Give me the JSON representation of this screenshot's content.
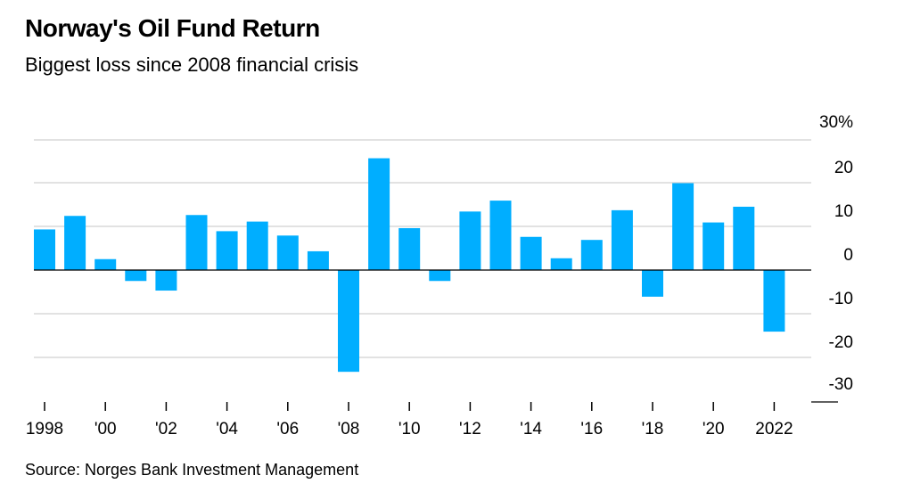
{
  "chart_data": {
    "type": "bar",
    "title": "Norway's Oil Fund Return",
    "subtitle": "Biggest loss since 2008 financial crisis",
    "source": "Source: Norges Bank Investment Management",
    "xlabel": "",
    "ylabel": "",
    "ylim": [
      -30,
      30
    ],
    "y_ticks": [
      {
        "value": 30,
        "label": "30%"
      },
      {
        "value": 20,
        "label": "20"
      },
      {
        "value": 10,
        "label": "10"
      },
      {
        "value": 0,
        "label": "0"
      },
      {
        "value": -10,
        "label": "-10"
      },
      {
        "value": -20,
        "label": "-20"
      },
      {
        "value": -30,
        "label": "-30"
      }
    ],
    "x_tick_labels": [
      {
        "year": 1998,
        "label": "1998"
      },
      {
        "year": 2000,
        "label": "'00"
      },
      {
        "year": 2002,
        "label": "'02"
      },
      {
        "year": 2004,
        "label": "'04"
      },
      {
        "year": 2006,
        "label": "'06"
      },
      {
        "year": 2008,
        "label": "'08"
      },
      {
        "year": 2010,
        "label": "'10"
      },
      {
        "year": 2012,
        "label": "'12"
      },
      {
        "year": 2014,
        "label": "'14"
      },
      {
        "year": 2016,
        "label": "'16"
      },
      {
        "year": 2018,
        "label": "'18"
      },
      {
        "year": 2020,
        "label": "'20"
      },
      {
        "year": 2022,
        "label": "2022"
      }
    ],
    "categories": [
      1998,
      1999,
      2000,
      2001,
      2002,
      2003,
      2004,
      2005,
      2006,
      2007,
      2008,
      2009,
      2010,
      2011,
      2012,
      2013,
      2014,
      2015,
      2016,
      2017,
      2018,
      2019,
      2020,
      2021,
      2022
    ],
    "values": [
      9.3,
      12.4,
      2.5,
      -2.5,
      -4.7,
      12.6,
      8.9,
      11.1,
      7.9,
      4.3,
      -23.3,
      25.6,
      9.6,
      -2.5,
      13.4,
      15.9,
      7.6,
      2.7,
      6.9,
      13.7,
      -6.1,
      19.9,
      10.9,
      14.5,
      -14.1
    ],
    "bar_color": "#00aeff",
    "gridlines": true
  }
}
